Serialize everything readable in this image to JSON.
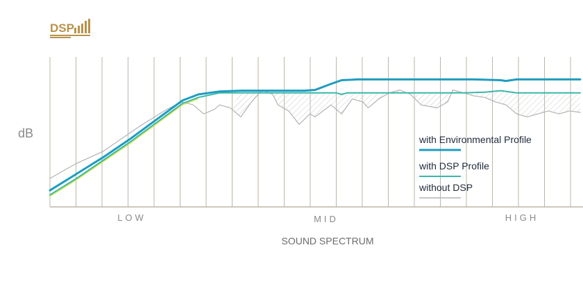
{
  "logo": {
    "text": "DSP",
    "color": "#b8924a"
  },
  "chart_data": {
    "type": "line",
    "ylabel": "dB",
    "xlabel": "SOUND SPECTRUM",
    "zones": [
      "LOW",
      "MID",
      "HIGH"
    ],
    "grid": true,
    "legend_position": "right",
    "x_range": [
      0,
      100
    ],
    "y_range": [
      0,
      100
    ],
    "series": [
      {
        "name": "with Environmental Profile",
        "color": "#1f9cbf",
        "x": [
          0,
          5,
          10,
          15,
          20,
          25,
          28,
          32,
          36,
          40,
          45,
          48,
          50,
          53,
          55,
          58,
          62,
          70,
          80,
          85,
          86,
          88,
          95,
          100
        ],
        "y": [
          11,
          22,
          33,
          45,
          58,
          71,
          75,
          77,
          77.5,
          77.5,
          77.5,
          77.5,
          78,
          82,
          84.5,
          85,
          85,
          85,
          85,
          84.5,
          84,
          85,
          85,
          85
        ]
      },
      {
        "name": "with DSP Profile",
        "color": "#3bb7a8",
        "x": [
          0,
          5,
          10,
          15,
          20,
          25,
          28,
          32,
          36,
          40,
          45,
          50,
          54,
          55,
          56,
          58,
          62,
          70,
          75,
          78,
          82,
          85,
          88,
          95,
          100
        ],
        "y": [
          8,
          19,
          31,
          43,
          56,
          69,
          73,
          76,
          76,
          76,
          76,
          76,
          76,
          75,
          76,
          76,
          76,
          76,
          76,
          76,
          76.5,
          77.5,
          76,
          76,
          76
        ]
      },
      {
        "name": "without DSP",
        "color": "#b3b3b3",
        "x": [
          0,
          5,
          10,
          17,
          22,
          25,
          27,
          29,
          31,
          32,
          34,
          36,
          38,
          40,
          42,
          43,
          45,
          47,
          49,
          50,
          53,
          55,
          57,
          59,
          60,
          62,
          64,
          66,
          68,
          70,
          73,
          75,
          76,
          78,
          80,
          82,
          84,
          86,
          88,
          90,
          92,
          94,
          96,
          98,
          100
        ],
        "y": [
          19,
          29,
          37,
          54,
          65,
          70,
          68,
          62,
          65,
          68,
          66,
          60,
          70,
          78,
          75,
          68,
          64,
          55,
          62,
          60,
          68,
          62,
          72,
          70,
          66,
          72,
          76,
          78,
          75,
          68,
          66,
          70,
          78,
          76,
          74,
          73,
          70,
          68,
          62,
          60,
          62,
          64,
          62,
          64,
          63
        ]
      }
    ]
  }
}
